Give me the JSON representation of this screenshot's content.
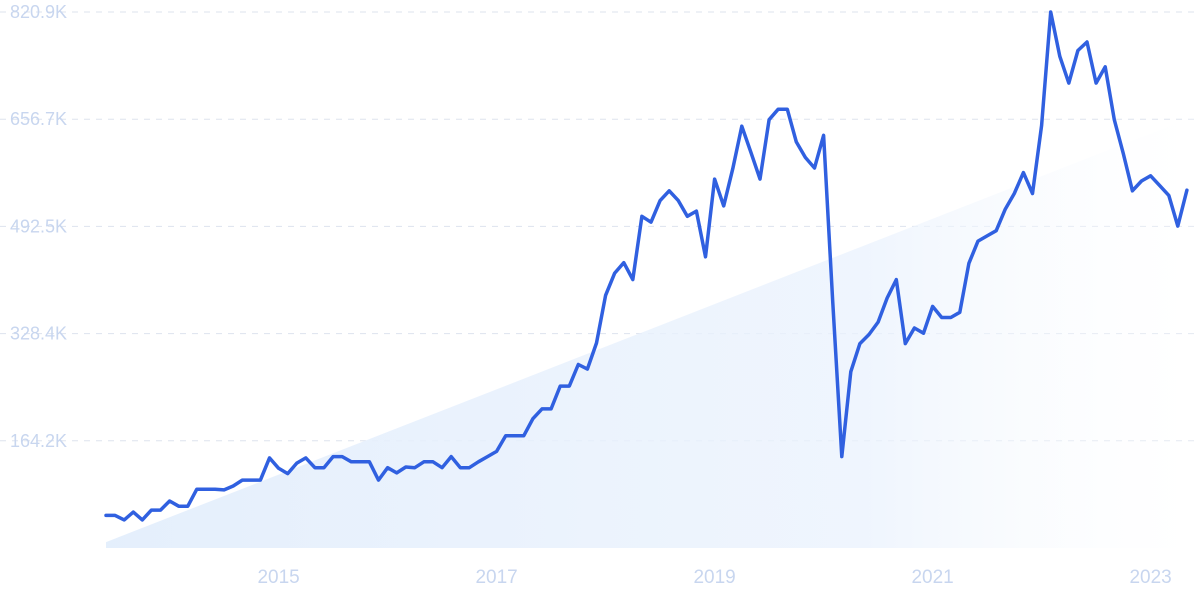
{
  "chart_data": {
    "type": "line",
    "title": "",
    "xlabel": "",
    "ylabel": "",
    "x_range": [
      "2013-06",
      "2023-06"
    ],
    "ylim": [
      0,
      820900
    ],
    "y_ticks": [
      {
        "value": 164200,
        "label": "164.2K"
      },
      {
        "value": 328400,
        "label": "328.4K"
      },
      {
        "value": 492500,
        "label": "492.5K"
      },
      {
        "value": 656700,
        "label": "656.7K"
      },
      {
        "value": 820900,
        "label": "820.9K"
      }
    ],
    "x_ticks": [
      {
        "value": "2015-01",
        "label": "2015"
      },
      {
        "value": "2017-01",
        "label": "2017"
      },
      {
        "value": "2019-01",
        "label": "2019"
      },
      {
        "value": "2021-01",
        "label": "2021"
      },
      {
        "value": "2023-01",
        "label": "2023"
      }
    ],
    "grid": "horizontal-dashed",
    "colors": {
      "line": "#3060e0",
      "trend_fill": "#e3eefc",
      "grid": "#dde3ee",
      "tick_label": "#c8d6ef"
    },
    "series": [
      {
        "values": [
          [
            "2013-06",
            50000
          ],
          [
            "2013-07",
            50000
          ],
          [
            "2013-08",
            43000
          ],
          [
            "2013-09",
            55000
          ],
          [
            "2013-10",
            43000
          ],
          [
            "2013-11",
            58000
          ],
          [
            "2013-12",
            58000
          ],
          [
            "2014-01",
            72000
          ],
          [
            "2014-02",
            64000
          ],
          [
            "2014-03",
            64000
          ],
          [
            "2014-04",
            90000
          ],
          [
            "2014-05",
            90000
          ],
          [
            "2014-06",
            90000
          ],
          [
            "2014-07",
            89000
          ],
          [
            "2014-08",
            95000
          ],
          [
            "2014-09",
            104000
          ],
          [
            "2014-10",
            104000
          ],
          [
            "2014-11",
            104000
          ],
          [
            "2014-12",
            138000
          ],
          [
            "2015-01",
            122000
          ],
          [
            "2015-02",
            114000
          ],
          [
            "2015-03",
            130000
          ],
          [
            "2015-04",
            138000
          ],
          [
            "2015-05",
            123000
          ],
          [
            "2015-06",
            123000
          ],
          [
            "2015-07",
            140000
          ],
          [
            "2015-08",
            140000
          ],
          [
            "2015-09",
            132000
          ],
          [
            "2015-10",
            132000
          ],
          [
            "2015-11",
            132000
          ],
          [
            "2015-12",
            104000
          ],
          [
            "2016-01",
            123000
          ],
          [
            "2016-02",
            115000
          ],
          [
            "2016-03",
            124000
          ],
          [
            "2016-04",
            123000
          ],
          [
            "2016-05",
            132000
          ],
          [
            "2016-06",
            132000
          ],
          [
            "2016-07",
            123000
          ],
          [
            "2016-08",
            140000
          ],
          [
            "2016-09",
            123000
          ],
          [
            "2016-10",
            123000
          ],
          [
            "2016-11",
            132000
          ],
          [
            "2016-12",
            140000
          ],
          [
            "2017-01",
            148000
          ],
          [
            "2017-02",
            172000
          ],
          [
            "2017-03",
            172000
          ],
          [
            "2017-04",
            172000
          ],
          [
            "2017-05",
            198000
          ],
          [
            "2017-06",
            213000
          ],
          [
            "2017-07",
            213000
          ],
          [
            "2017-08",
            248000
          ],
          [
            "2017-09",
            248000
          ],
          [
            "2017-10",
            281000
          ],
          [
            "2017-11",
            274000
          ],
          [
            "2017-12",
            314000
          ],
          [
            "2018-01",
            387000
          ],
          [
            "2018-02",
            421000
          ],
          [
            "2018-03",
            437000
          ],
          [
            "2018-04",
            411000
          ],
          [
            "2018-05",
            508000
          ],
          [
            "2018-06",
            499000
          ],
          [
            "2018-07",
            532000
          ],
          [
            "2018-08",
            547000
          ],
          [
            "2018-09",
            532000
          ],
          [
            "2018-10",
            508000
          ],
          [
            "2018-11",
            516000
          ],
          [
            "2018-12",
            446000
          ],
          [
            "2019-01",
            565000
          ],
          [
            "2019-02",
            524000
          ],
          [
            "2019-03",
            581000
          ],
          [
            "2019-04",
            646000
          ],
          [
            "2019-05",
            606000
          ],
          [
            "2019-06",
            565000
          ],
          [
            "2019-07",
            656000
          ],
          [
            "2019-08",
            672000
          ],
          [
            "2019-09",
            672000
          ],
          [
            "2019-10",
            622000
          ],
          [
            "2019-11",
            598000
          ],
          [
            "2019-12",
            582000
          ],
          [
            "2020-01",
            632000
          ],
          [
            "2020-02",
            378000
          ],
          [
            "2020-03",
            140000
          ],
          [
            "2020-04",
            270000
          ],
          [
            "2020-05",
            313000
          ],
          [
            "2020-06",
            327000
          ],
          [
            "2020-07",
            346000
          ],
          [
            "2020-08",
            383000
          ],
          [
            "2020-09",
            411000
          ],
          [
            "2020-10",
            313000
          ],
          [
            "2020-11",
            337000
          ],
          [
            "2020-12",
            329000
          ],
          [
            "2021-01",
            370000
          ],
          [
            "2021-02",
            353000
          ],
          [
            "2021-03",
            353000
          ],
          [
            "2021-04",
            361000
          ],
          [
            "2021-05",
            436000
          ],
          [
            "2021-06",
            470000
          ],
          [
            "2021-07",
            478000
          ],
          [
            "2021-08",
            486000
          ],
          [
            "2021-09",
            519000
          ],
          [
            "2021-10",
            543000
          ],
          [
            "2021-11",
            575000
          ],
          [
            "2021-12",
            543000
          ],
          [
            "2022-01",
            647000
          ],
          [
            "2022-02",
            820900
          ],
          [
            "2022-03",
            753000
          ],
          [
            "2022-04",
            712000
          ],
          [
            "2022-05",
            762000
          ],
          [
            "2022-06",
            775000
          ],
          [
            "2022-07",
            712000
          ],
          [
            "2022-08",
            737000
          ],
          [
            "2022-09",
            656000
          ],
          [
            "2022-10",
            604000
          ],
          [
            "2022-11",
            547000
          ],
          [
            "2022-12",
            562000
          ],
          [
            "2023-01",
            570000
          ],
          [
            "2023-02",
            555000
          ],
          [
            "2023-03",
            540000
          ],
          [
            "2023-04",
            493000
          ],
          [
            "2023-05",
            548000
          ]
        ]
      }
    ],
    "trend_area": {
      "start": [
        "2013-06",
        9000
      ],
      "end": [
        "2023-06",
        662000
      ]
    }
  }
}
